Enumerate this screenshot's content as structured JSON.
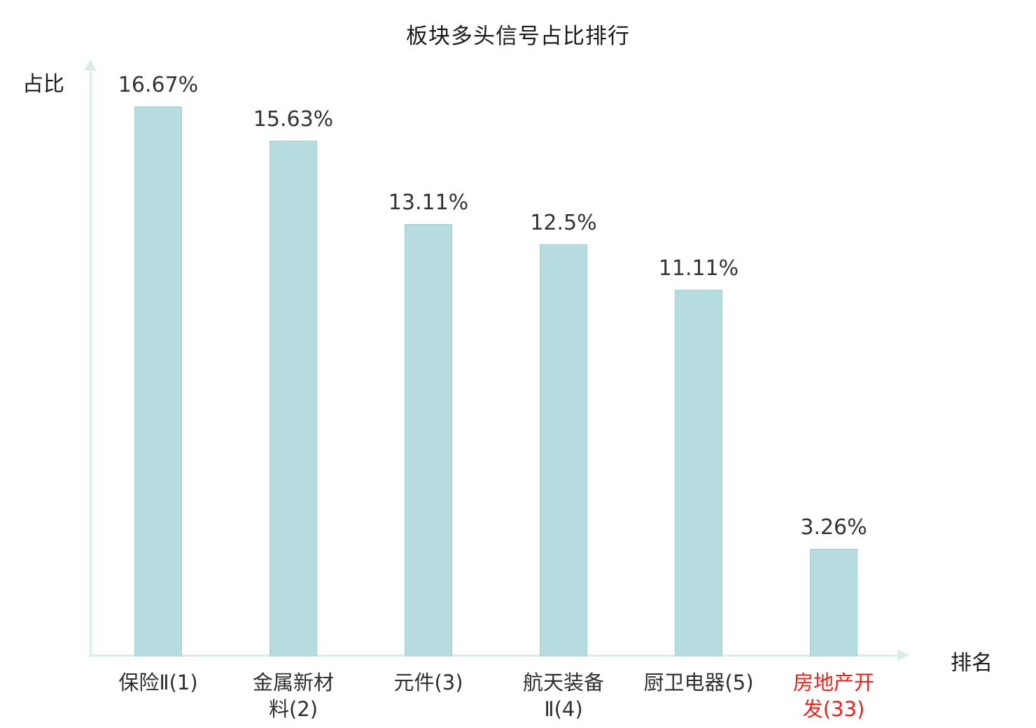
{
  "chart_data": {
    "type": "bar",
    "title": "板块多头信号占比排行",
    "xlabel": "排名",
    "ylabel": "占比",
    "categories": [
      "保险Ⅱ(1)",
      "金属新材料(2)",
      "元件(3)",
      "航天装备Ⅱ(4)",
      "厨卫电器(5)",
      "房地产开发(33)"
    ],
    "tick_labels": [
      "保险Ⅱ(1)",
      "金属新材\n料(2)",
      "元件(3)",
      "航天装备\nⅡ(4)",
      "厨卫电器(5)",
      "房地产开\n发(33)"
    ],
    "values": [
      16.67,
      15.63,
      13.11,
      12.5,
      11.11,
      3.26
    ],
    "value_labels": [
      "16.67%",
      "15.63%",
      "13.11%",
      "12.5%",
      "11.11%",
      "3.26%"
    ],
    "ylim": [
      0,
      18
    ],
    "grid": false,
    "legend": "none",
    "highlight_index": 5,
    "colors": {
      "bar_fill": "#b6dce0",
      "bar_edge": "#9fced4",
      "axis": "#daeee6",
      "title_text": "#1a1a1a",
      "value_text": "#333333",
      "tick_text": "#2f2f2f",
      "highlight_text": "#e02420",
      "background": "#ffffff"
    }
  }
}
